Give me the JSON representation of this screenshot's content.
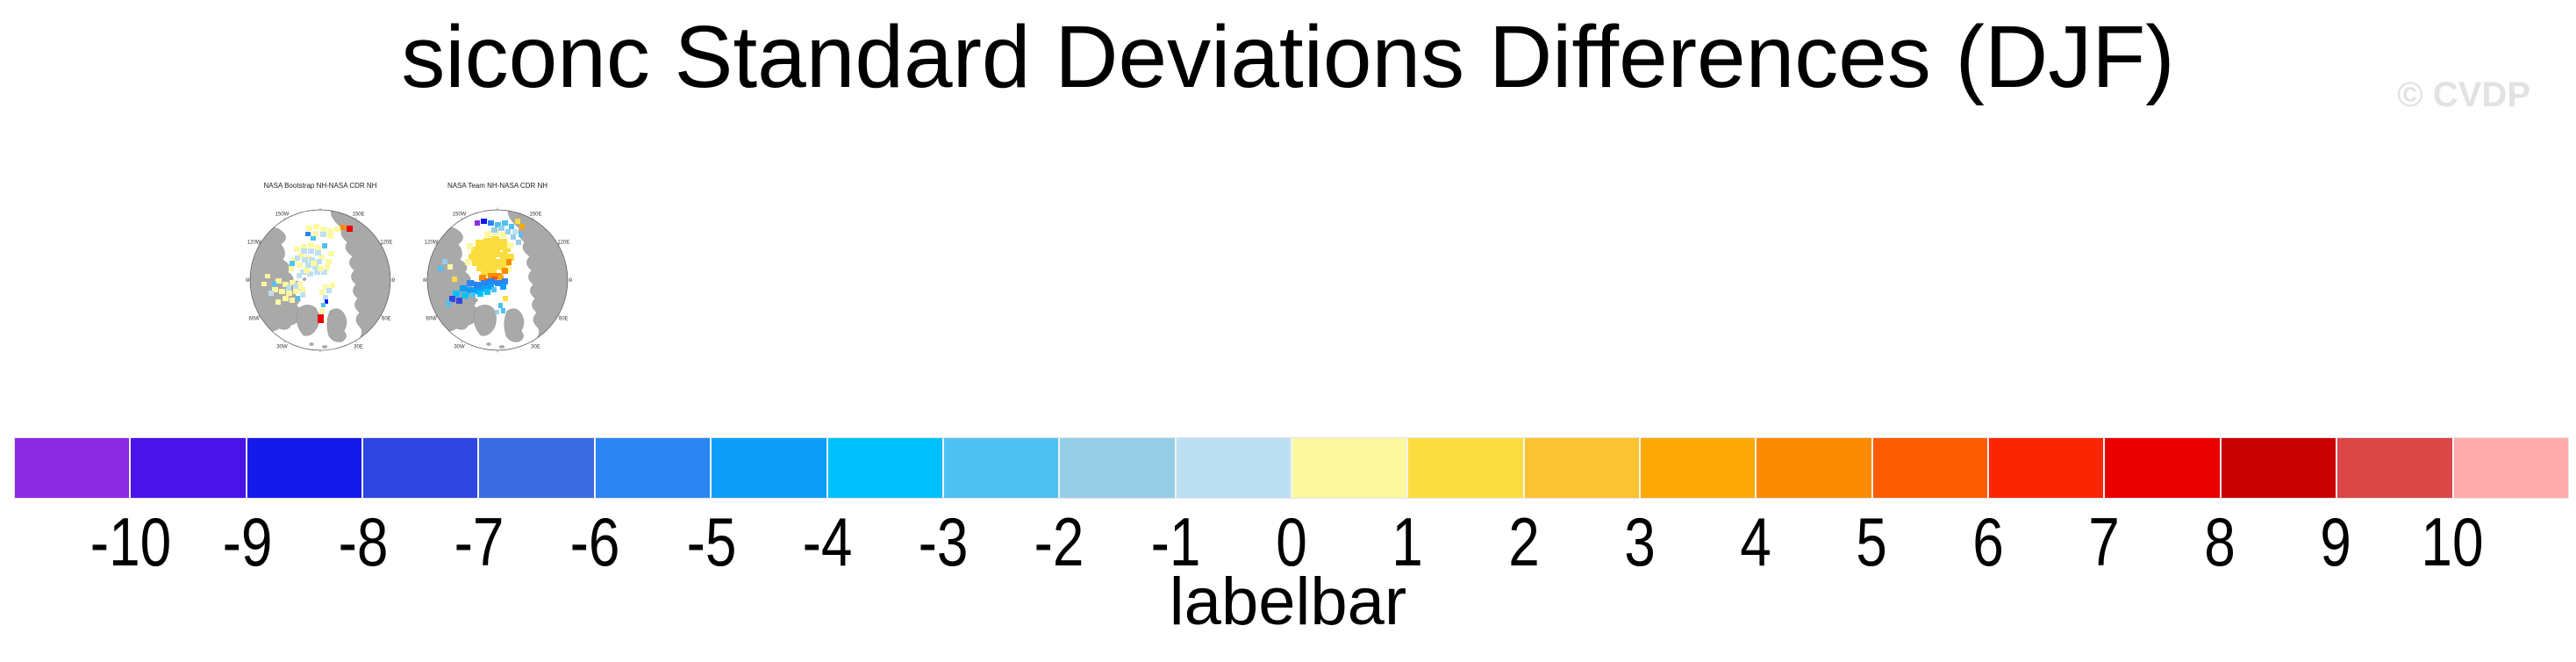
{
  "watermark": "© CVDP",
  "chart_data": {
    "type": "heatmap",
    "title": "siconc Standard Deviations Differences (DJF)",
    "variable": "siconc",
    "statistic": "Standard Deviations Differences",
    "season": "DJF",
    "projection": "NH polar stereographic",
    "lon_ring_labels": [
      "180",
      "150E",
      "120E",
      "90E",
      "60E",
      "30E",
      "0",
      "30W",
      "60W",
      "90W",
      "120W",
      "150W"
    ],
    "panels": [
      {
        "title": "NASA Bootstrap NH-NASA CDR NH",
        "patches": [
          [
            69,
            23,
            7,
            6,
            "#FCF8A0"
          ],
          [
            77,
            21,
            7,
            6,
            "#FCF8A0"
          ],
          [
            85,
            24,
            7,
            6,
            "#FCF8A0"
          ],
          [
            93,
            26,
            7,
            6,
            "#FCF8A0"
          ],
          [
            101,
            24,
            7,
            6,
            "#FCF8A0"
          ],
          [
            85,
            30,
            7,
            6,
            "#BCE0F2"
          ],
          [
            93,
            32,
            7,
            6,
            "#FCF8A0"
          ],
          [
            77,
            29,
            6,
            6,
            "#FCF8A0"
          ],
          [
            68,
            30,
            6,
            5,
            "#2A85F2"
          ],
          [
            74,
            35,
            6,
            5,
            "#4DC1F2"
          ],
          [
            108,
            22,
            6,
            6,
            "#FB8B00"
          ],
          [
            115,
            23,
            7,
            7,
            "#EA0001"
          ],
          [
            55,
            47,
            7,
            6,
            "#FCF8A0"
          ],
          [
            63,
            44,
            7,
            6,
            "#FCF8A0"
          ],
          [
            71,
            42,
            7,
            6,
            "#FCF8A0"
          ],
          [
            79,
            45,
            7,
            6,
            "#FCF8A0"
          ],
          [
            87,
            43,
            6,
            6,
            "#4DC1F2"
          ],
          [
            94,
            52,
            7,
            6,
            "#FCF8A0"
          ],
          [
            60,
            54,
            7,
            6,
            "#FCF8A0"
          ],
          [
            52,
            59,
            7,
            6,
            "#FCF8A0"
          ],
          [
            68,
            57,
            7,
            6,
            "#FCF8A0"
          ],
          [
            83,
            56,
            7,
            6,
            "#FCF8A0"
          ],
          [
            91,
            61,
            7,
            6,
            "#FCF8A0"
          ],
          [
            63,
            49,
            7,
            6,
            "#BCE0F2"
          ],
          [
            71,
            49,
            7,
            6,
            "#BCE0F2"
          ],
          [
            79,
            51,
            7,
            6,
            "#BCE0F2"
          ],
          [
            56,
            57,
            6,
            6,
            "#BCE0F2"
          ],
          [
            64,
            59,
            7,
            6,
            "#BCE0F2"
          ],
          [
            72,
            59,
            7,
            6,
            "#BCE0F2"
          ],
          [
            80,
            61,
            7,
            6,
            "#BCE0F2"
          ],
          [
            68,
            65,
            7,
            6,
            "#BCE0F2"
          ],
          [
            76,
            67,
            7,
            6,
            "#BCE0F2"
          ],
          [
            62,
            73,
            7,
            6,
            "#BCE0F2"
          ],
          [
            70,
            75,
            7,
            6,
            "#BCE0F2"
          ],
          [
            78,
            73,
            7,
            6,
            "#BCE0F2"
          ],
          [
            86,
            73,
            7,
            6,
            "#BCE0F2"
          ],
          [
            58,
            77,
            6,
            6,
            "#BCE0F2"
          ],
          [
            50,
            63,
            6,
            6,
            "#4DC1F2"
          ],
          [
            58,
            65,
            7,
            6,
            "#FCF8A0"
          ],
          [
            74,
            63,
            7,
            6,
            "#FCF8A0"
          ],
          [
            90,
            67,
            6,
            6,
            "#FCF8A0"
          ],
          [
            49,
            69,
            6,
            6,
            "#FCF8A0"
          ],
          [
            66,
            71,
            7,
            6,
            "#FCF8A0"
          ],
          [
            82,
            69,
            7,
            6,
            "#FCF8A0"
          ],
          [
            34,
            83,
            7,
            6,
            "#FCF8A0"
          ],
          [
            42,
            87,
            7,
            6,
            "#FCF8A0"
          ],
          [
            50,
            85,
            7,
            6,
            "#FCF8A0"
          ],
          [
            58,
            87,
            7,
            6,
            "#FCF8A0"
          ],
          [
            30,
            93,
            7,
            6,
            "#FCF8A0"
          ],
          [
            38,
            95,
            7,
            6,
            "#FCF8A0"
          ],
          [
            46,
            97,
            7,
            6,
            "#FCF8A0"
          ],
          [
            54,
            95,
            7,
            6,
            "#FCF8A0"
          ],
          [
            62,
            93,
            6,
            6,
            "#FCF8A0"
          ],
          [
            42,
            103,
            7,
            6,
            "#FCF8A0"
          ],
          [
            34,
            107,
            6,
            6,
            "#FCF8A0"
          ],
          [
            50,
            105,
            6,
            6,
            "#FCF8A0"
          ],
          [
            46,
            91,
            6,
            6,
            "#BCE0F2"
          ],
          [
            54,
            89,
            6,
            6,
            "#BCE0F2"
          ],
          [
            26,
            97,
            6,
            6,
            "#BCE0F2"
          ],
          [
            62,
            99,
            6,
            6,
            "#BCE0F2"
          ],
          [
            30,
            87,
            5,
            5,
            "#4DC1F2"
          ],
          [
            57,
            103,
            5,
            5,
            "#4DC1F2"
          ],
          [
            22,
            78,
            6,
            5,
            "#FCF8A0"
          ],
          [
            18,
            87,
            6,
            5,
            "#FCF8A0"
          ],
          [
            88,
            90,
            7,
            6,
            "#FCF8A0"
          ],
          [
            96,
            88,
            6,
            6,
            "#FCF8A0"
          ],
          [
            84,
            96,
            6,
            6,
            "#FCF8A0"
          ],
          [
            92,
            94,
            6,
            6,
            "#BCE0F2"
          ],
          [
            88,
            102,
            6,
            6,
            "#BCE0F2"
          ],
          [
            90,
            107,
            4,
            5,
            "#1619EC"
          ],
          [
            86,
            111,
            5,
            5,
            "#4DC1F2"
          ],
          [
            84,
            117,
            6,
            6,
            "#FCF8A0"
          ],
          [
            82,
            124,
            7,
            10,
            "#EA0001"
          ]
        ]
      },
      {
        "title": "NASA Team NH-NASA CDR NH",
        "patches": [
          [
            60,
            39,
            9,
            8,
            "#FBDD3F"
          ],
          [
            69,
            37,
            9,
            8,
            "#FBDD3F"
          ],
          [
            78,
            35,
            9,
            8,
            "#FBDD3F"
          ],
          [
            87,
            38,
            9,
            8,
            "#FBDD3F"
          ],
          [
            55,
            47,
            9,
            8,
            "#FBDD3F"
          ],
          [
            64,
            45,
            9,
            8,
            "#FBDD3F"
          ],
          [
            73,
            43,
            9,
            8,
            "#FBDD3F"
          ],
          [
            82,
            43,
            9,
            8,
            "#FBDD3F"
          ],
          [
            91,
            45,
            9,
            8,
            "#FBDD3F"
          ],
          [
            52,
            55,
            9,
            8,
            "#FBDD3F"
          ],
          [
            61,
            53,
            9,
            8,
            "#FBDD3F"
          ],
          [
            70,
            51,
            9,
            8,
            "#FBDD3F"
          ],
          [
            79,
            51,
            9,
            8,
            "#FBDD3F"
          ],
          [
            88,
            53,
            9,
            8,
            "#FBDD3F"
          ],
          [
            96,
            55,
            8,
            8,
            "#FBDD3F"
          ],
          [
            56,
            61,
            9,
            8,
            "#FBDD3F"
          ],
          [
            65,
            59,
            9,
            8,
            "#FBDD3F"
          ],
          [
            74,
            59,
            9,
            8,
            "#FBDD3F"
          ],
          [
            83,
            61,
            9,
            8,
            "#FBDD3F"
          ],
          [
            92,
            61,
            8,
            8,
            "#FBDD3F"
          ],
          [
            61,
            67,
            9,
            8,
            "#FBDD3F"
          ],
          [
            70,
            65,
            9,
            8,
            "#FBDD3F"
          ],
          [
            79,
            65,
            9,
            8,
            "#FBDD3F"
          ],
          [
            88,
            67,
            8,
            8,
            "#FBDD3F"
          ],
          [
            66,
            73,
            9,
            8,
            "#FBDD3F"
          ],
          [
            75,
            71,
            9,
            8,
            "#FBDD3F"
          ],
          [
            70,
            29,
            8,
            7,
            "#FCF8A0"
          ],
          [
            79,
            27,
            8,
            7,
            "#FCF8A0"
          ],
          [
            88,
            30,
            7,
            7,
            "#FCF8A0"
          ],
          [
            50,
            43,
            7,
            7,
            "#FCF8A0"
          ],
          [
            96,
            42,
            7,
            7,
            "#FCF8A0"
          ],
          [
            48,
            61,
            7,
            7,
            "#FCF8A0"
          ],
          [
            94,
            69,
            7,
            7,
            "#FCF8A0"
          ],
          [
            74,
            77,
            8,
            7,
            "#FB8B00"
          ],
          [
            82,
            77,
            8,
            7,
            "#FB8B00"
          ],
          [
            90,
            71,
            7,
            7,
            "#FB8B00"
          ],
          [
            64,
            79,
            8,
            7,
            "#FB8B00"
          ],
          [
            95,
            61,
            6,
            7,
            "#FB8B00"
          ],
          [
            78,
            81,
            7,
            6,
            "#FB5C00"
          ],
          [
            70,
            83,
            7,
            6,
            "#FB5C00"
          ],
          [
            86,
            79,
            6,
            6,
            "#FCA908"
          ],
          [
            50,
            85,
            8,
            7,
            "#2A85F2"
          ],
          [
            58,
            87,
            8,
            7,
            "#2A85F2"
          ],
          [
            66,
            85,
            8,
            7,
            "#2A85F2"
          ],
          [
            74,
            83,
            8,
            7,
            "#2A85F2"
          ],
          [
            82,
            85,
            8,
            7,
            "#2A85F2"
          ],
          [
            90,
            83,
            7,
            7,
            "#2A85F2"
          ],
          [
            42,
            91,
            8,
            7,
            "#0D9FF8"
          ],
          [
            50,
            93,
            8,
            7,
            "#0D9FF8"
          ],
          [
            58,
            94,
            8,
            7,
            "#0D9FF8"
          ],
          [
            66,
            91,
            8,
            7,
            "#0D9FF8"
          ],
          [
            74,
            89,
            7,
            7,
            "#0D9FF8"
          ],
          [
            88,
            89,
            7,
            7,
            "#0D9FF8"
          ],
          [
            34,
            97,
            8,
            7,
            "#00C1FD"
          ],
          [
            44,
            99,
            8,
            7,
            "#00C1FD"
          ],
          [
            62,
            97,
            7,
            7,
            "#00C1FD"
          ],
          [
            70,
            95,
            7,
            7,
            "#00C1FD"
          ],
          [
            30,
            103,
            7,
            7,
            "#2F46E1"
          ],
          [
            38,
            105,
            7,
            7,
            "#2F46E1"
          ],
          [
            54,
            99,
            6,
            6,
            "#4DC1F2"
          ],
          [
            78,
            93,
            6,
            6,
            "#4DC1F2"
          ],
          [
            26,
            109,
            6,
            6,
            "#4DC1F2"
          ],
          [
            22,
            61,
            6,
            6,
            "#96CEE8"
          ],
          [
            17,
            69,
            6,
            6,
            "#4DC1F2"
          ],
          [
            28,
            67,
            6,
            6,
            "#FCF8A0"
          ],
          [
            33,
            81,
            6,
            6,
            "#FBDD3F"
          ],
          [
            59,
            17,
            6,
            6,
            "#8B2BE3"
          ],
          [
            66,
            15,
            7,
            6,
            "#1619EC"
          ],
          [
            74,
            17,
            7,
            6,
            "#2A85F2"
          ],
          [
            82,
            19,
            7,
            6,
            "#4DC1F2"
          ],
          [
            90,
            17,
            7,
            6,
            "#4DC1F2"
          ],
          [
            98,
            21,
            6,
            6,
            "#4DC1F2"
          ],
          [
            78,
            25,
            7,
            6,
            "#96CEE8"
          ],
          [
            86,
            23,
            7,
            6,
            "#96CEE8"
          ],
          [
            94,
            27,
            6,
            6,
            "#96CEE8"
          ],
          [
            105,
            15,
            6,
            6,
            "#FBDD3F"
          ],
          [
            110,
            21,
            6,
            6,
            "#FCA908"
          ],
          [
            102,
            27,
            6,
            6,
            "#BCE0F2"
          ],
          [
            100,
            33,
            6,
            6,
            "#96CEE8"
          ],
          [
            106,
            39,
            6,
            6,
            "#96CEE8"
          ],
          [
            109,
            31,
            5,
            5,
            "#4DC1F2"
          ],
          [
            86,
            111,
            5,
            6,
            "#4DC1F2"
          ],
          [
            89,
            117,
            5,
            6,
            "#4DC1F2"
          ],
          [
            91,
            103,
            6,
            6,
            "#FBDD3F"
          ],
          [
            82,
            119,
            5,
            5,
            "#96CEE8"
          ]
        ]
      }
    ],
    "colorbar": {
      "caption": "labelbar",
      "tick_labels": [
        "-10",
        "-9",
        "-8",
        "-7",
        "-6",
        "-5",
        "-4",
        "-3",
        "-2",
        "-1",
        "0",
        "1",
        "2",
        "3",
        "4",
        "5",
        "6",
        "7",
        "8",
        "9",
        "10"
      ],
      "levels": [
        -10,
        -9,
        -8,
        -7,
        -6,
        -5,
        -4,
        -3,
        -2,
        -1,
        0,
        1,
        2,
        3,
        4,
        5,
        6,
        7,
        8,
        9,
        10
      ],
      "colors": [
        "#8B2BE3",
        "#4A13E8",
        "#1619EC",
        "#2F46E1",
        "#3B6AE1",
        "#2A85F2",
        "#0D9FF8",
        "#00C1FD",
        "#4DC1F2",
        "#96CEE8",
        "#BCE0F2",
        "#FCF8A0",
        "#FBDD3F",
        "#FBC331",
        "#FCA908",
        "#FB8B00",
        "#FB5C00",
        "#F92503",
        "#EA0001",
        "#C80001",
        "#D94746",
        "#FFABAB"
      ]
    },
    "map_colors": {
      "land": "#A9A9A9",
      "coast": "#8E8E8E",
      "ocean": "#FFFFFF",
      "circle_outline": "#555555"
    }
  }
}
